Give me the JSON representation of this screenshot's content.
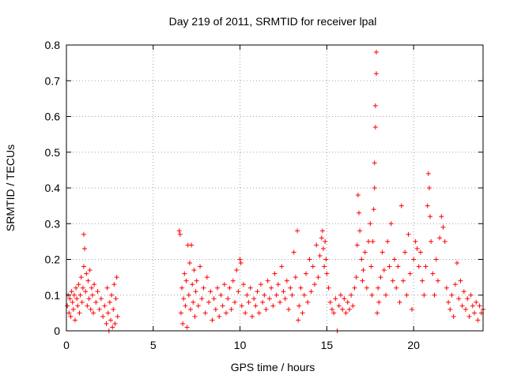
{
  "chart_data": {
    "type": "scatter",
    "title": "Day 219 of 2011, SRMTID for receiver lpal",
    "xlabel": "GPS time / hours",
    "ylabel": "SRMTID / TECUs",
    "xlim": [
      0,
      24
    ],
    "ylim": [
      0,
      0.8
    ],
    "xticks": [
      0,
      5,
      10,
      15,
      20
    ],
    "yticks": [
      0,
      0.1,
      0.2,
      0.3,
      0.4,
      0.5,
      0.6,
      0.7,
      0.8
    ],
    "xtick_labels": [
      "0",
      "5",
      "10",
      "15",
      "20"
    ],
    "ytick_labels": [
      "0",
      "0.1",
      "0.2",
      "0.3",
      "0.4",
      "0.5",
      "0.6",
      "0.7",
      "0.8"
    ],
    "grid": true,
    "marker": "+",
    "marker_color": "#ff0000",
    "series": [
      {
        "name": "SRMTID",
        "points": [
          [
            0.05,
            0.07
          ],
          [
            0.1,
            0.1
          ],
          [
            0.15,
            0.05
          ],
          [
            0.2,
            0.09
          ],
          [
            0.25,
            0.04
          ],
          [
            0.3,
            0.11
          ],
          [
            0.35,
            0.08
          ],
          [
            0.4,
            0.06
          ],
          [
            0.45,
            0.1
          ],
          [
            0.5,
            0.03
          ],
          [
            0.55,
            0.12
          ],
          [
            0.6,
            0.09
          ],
          [
            0.65,
            0.07
          ],
          [
            0.7,
            0.13
          ],
          [
            0.75,
            0.05
          ],
          [
            0.8,
            0.1
          ],
          [
            0.85,
            0.15
          ],
          [
            0.9,
            0.08
          ],
          [
            0.95,
            0.12
          ],
          [
            1.0,
            0.18
          ],
          [
            1.0,
            0.27
          ],
          [
            1.05,
            0.23
          ],
          [
            1.1,
            0.11
          ],
          [
            1.15,
            0.16
          ],
          [
            1.2,
            0.07
          ],
          [
            1.25,
            0.14
          ],
          [
            1.3,
            0.09
          ],
          [
            1.35,
            0.17
          ],
          [
            1.4,
            0.06
          ],
          [
            1.45,
            0.12
          ],
          [
            1.5,
            0.1
          ],
          [
            1.55,
            0.05
          ],
          [
            1.6,
            0.13
          ],
          [
            1.7,
            0.08
          ],
          [
            1.8,
            0.11
          ],
          [
            1.9,
            0.06
          ],
          [
            2.0,
            0.09
          ],
          [
            2.1,
            0.04
          ],
          [
            2.2,
            0.07
          ],
          [
            2.3,
            0.02
          ],
          [
            2.35,
            0.12
          ],
          [
            2.4,
            0.05
          ],
          [
            2.45,
            0.0
          ],
          [
            2.5,
            0.08
          ],
          [
            2.55,
            0.03
          ],
          [
            2.6,
            0.1
          ],
          [
            2.65,
            0.01
          ],
          [
            2.7,
            0.06
          ],
          [
            2.75,
            0.13
          ],
          [
            2.8,
            0.02
          ],
          [
            2.85,
            0.09
          ],
          [
            2.9,
            0.15
          ],
          [
            2.95,
            0.04
          ],
          [
            6.5,
            0.28
          ],
          [
            6.55,
            0.27
          ],
          [
            6.6,
            0.05
          ],
          [
            6.65,
            0.12
          ],
          [
            6.7,
            0.02
          ],
          [
            6.75,
            0.09
          ],
          [
            6.8,
            0.16
          ],
          [
            6.85,
            0.07
          ],
          [
            6.9,
            0.14
          ],
          [
            6.95,
            0.01
          ],
          [
            7.0,
            0.24
          ],
          [
            7.05,
            0.1
          ],
          [
            7.1,
            0.19
          ],
          [
            7.15,
            0.06
          ],
          [
            7.2,
            0.24
          ],
          [
            7.25,
            0.13
          ],
          [
            7.3,
            0.08
          ],
          [
            7.35,
            0.17
          ],
          [
            7.4,
            0.04
          ],
          [
            7.45,
            0.11
          ],
          [
            7.5,
            0.14
          ],
          [
            7.6,
            0.07
          ],
          [
            7.7,
            0.18
          ],
          [
            7.8,
            0.09
          ],
          [
            7.9,
            0.12
          ],
          [
            8.0,
            0.05
          ],
          [
            8.1,
            0.15
          ],
          [
            8.2,
            0.08
          ],
          [
            8.3,
            0.11
          ],
          [
            8.4,
            0.03
          ],
          [
            8.5,
            0.09
          ],
          [
            8.6,
            0.06
          ],
          [
            8.7,
            0.12
          ],
          [
            8.8,
            0.04
          ],
          [
            8.9,
            0.1
          ],
          [
            9.0,
            0.07
          ],
          [
            9.1,
            0.13
          ],
          [
            9.2,
            0.05
          ],
          [
            9.3,
            0.09
          ],
          [
            9.4,
            0.12
          ],
          [
            9.5,
            0.06
          ],
          [
            9.6,
            0.14
          ],
          [
            9.7,
            0.08
          ],
          [
            9.8,
            0.17
          ],
          [
            9.9,
            0.11
          ],
          [
            10.0,
            0.2
          ],
          [
            10.05,
            0.19
          ],
          [
            10.1,
            0.07
          ],
          [
            10.2,
            0.13
          ],
          [
            10.3,
            0.05
          ],
          [
            10.4,
            0.1
          ],
          [
            10.5,
            0.08
          ],
          [
            10.6,
            0.12
          ],
          [
            10.7,
            0.04
          ],
          [
            10.8,
            0.09
          ],
          [
            10.9,
            0.07
          ],
          [
            11.0,
            0.11
          ],
          [
            11.1,
            0.05
          ],
          [
            11.2,
            0.13
          ],
          [
            11.3,
            0.08
          ],
          [
            11.4,
            0.1
          ],
          [
            11.5,
            0.06
          ],
          [
            11.6,
            0.14
          ],
          [
            11.7,
            0.09
          ],
          [
            11.8,
            0.12
          ],
          [
            11.9,
            0.07
          ],
          [
            12.0,
            0.16
          ],
          [
            12.1,
            0.1
          ],
          [
            12.2,
            0.13
          ],
          [
            12.3,
            0.08
          ],
          [
            12.4,
            0.18
          ],
          [
            12.5,
            0.11
          ],
          [
            12.6,
            0.09
          ],
          [
            12.7,
            0.14
          ],
          [
            12.8,
            0.06
          ],
          [
            12.9,
            0.12
          ],
          [
            13.0,
            0.1
          ],
          [
            13.1,
            0.22
          ],
          [
            13.2,
            0.15
          ],
          [
            13.3,
            0.28
          ],
          [
            13.35,
            0.03
          ],
          [
            13.4,
            0.07
          ],
          [
            13.5,
            0.12
          ],
          [
            13.6,
            0.05
          ],
          [
            13.7,
            0.1
          ],
          [
            13.8,
            0.16
          ],
          [
            13.9,
            0.08
          ],
          [
            14.0,
            0.2
          ],
          [
            14.1,
            0.11
          ],
          [
            14.2,
            0.18
          ],
          [
            14.3,
            0.13
          ],
          [
            14.4,
            0.24
          ],
          [
            14.5,
            0.15
          ],
          [
            14.6,
            0.21
          ],
          [
            14.7,
            0.26
          ],
          [
            14.75,
            0.28
          ],
          [
            14.8,
            0.23
          ],
          [
            14.85,
            0.18
          ],
          [
            14.9,
            0.25
          ],
          [
            14.95,
            0.2
          ],
          [
            15.0,
            0.16
          ],
          [
            15.1,
            0.12
          ],
          [
            15.2,
            0.08
          ],
          [
            15.3,
            0.06
          ],
          [
            15.4,
            0.05
          ],
          [
            15.5,
            0.09
          ],
          [
            15.6,
            0.0
          ],
          [
            15.7,
            0.07
          ],
          [
            15.8,
            0.1
          ],
          [
            15.9,
            0.06
          ],
          [
            16.0,
            0.09
          ],
          [
            16.1,
            0.05
          ],
          [
            16.2,
            0.08
          ],
          [
            16.3,
            0.06
          ],
          [
            16.4,
            0.1
          ],
          [
            16.5,
            0.07
          ],
          [
            16.6,
            0.12
          ],
          [
            16.7,
            0.15
          ],
          [
            16.75,
            0.24
          ],
          [
            16.8,
            0.38
          ],
          [
            16.85,
            0.33
          ],
          [
            16.9,
            0.28
          ],
          [
            17.0,
            0.2
          ],
          [
            17.05,
            0.14
          ],
          [
            17.1,
            0.17
          ],
          [
            17.2,
            0.22
          ],
          [
            17.3,
            0.12
          ],
          [
            17.4,
            0.25
          ],
          [
            17.5,
            0.3
          ],
          [
            17.55,
            0.18
          ],
          [
            17.6,
            0.1
          ],
          [
            17.65,
            0.25
          ],
          [
            17.7,
            0.34
          ],
          [
            17.75,
            0.4
          ],
          [
            17.75,
            0.47
          ],
          [
            17.8,
            0.57
          ],
          [
            17.8,
            0.63
          ],
          [
            17.85,
            0.72
          ],
          [
            17.85,
            0.78
          ],
          [
            17.9,
            0.05
          ],
          [
            17.95,
            0.12
          ],
          [
            18.0,
            0.08
          ],
          [
            18.1,
            0.15
          ],
          [
            18.2,
            0.22
          ],
          [
            18.3,
            0.17
          ],
          [
            18.4,
            0.1
          ],
          [
            18.5,
            0.25
          ],
          [
            18.6,
            0.18
          ],
          [
            18.7,
            0.3
          ],
          [
            18.8,
            0.14
          ],
          [
            18.9,
            0.2
          ],
          [
            19.0,
            0.12
          ],
          [
            19.1,
            0.18
          ],
          [
            19.2,
            0.08
          ],
          [
            19.3,
            0.35
          ],
          [
            19.4,
            0.14
          ],
          [
            19.5,
            0.22
          ],
          [
            19.6,
            0.1
          ],
          [
            19.7,
            0.27
          ],
          [
            19.8,
            0.16
          ],
          [
            19.9,
            0.06
          ],
          [
            20.0,
            0.2
          ],
          [
            20.1,
            0.25
          ],
          [
            20.2,
            0.23
          ],
          [
            20.3,
            0.18
          ],
          [
            20.4,
            0.22
          ],
          [
            20.5,
            0.14
          ],
          [
            20.6,
            0.1
          ],
          [
            20.7,
            0.18
          ],
          [
            20.8,
            0.35
          ],
          [
            20.85,
            0.44
          ],
          [
            20.9,
            0.4
          ],
          [
            20.95,
            0.32
          ],
          [
            21.0,
            0.25
          ],
          [
            21.1,
            0.16
          ],
          [
            21.2,
            0.1
          ],
          [
            21.3,
            0.2
          ],
          [
            21.4,
            0.14
          ],
          [
            21.5,
            0.26
          ],
          [
            21.6,
            0.32
          ],
          [
            21.7,
            0.29
          ],
          [
            21.8,
            0.25
          ],
          [
            21.9,
            0.12
          ],
          [
            22.0,
            0.08
          ],
          [
            22.1,
            0.06
          ],
          [
            22.2,
            0.1
          ],
          [
            22.3,
            0.04
          ],
          [
            22.4,
            0.13
          ],
          [
            22.5,
            0.19
          ],
          [
            22.6,
            0.09
          ],
          [
            22.7,
            0.14
          ],
          [
            22.8,
            0.07
          ],
          [
            22.9,
            0.11
          ],
          [
            23.0,
            0.06
          ],
          [
            23.1,
            0.09
          ],
          [
            23.2,
            0.04
          ],
          [
            23.3,
            0.1
          ],
          [
            23.4,
            0.07
          ],
          [
            23.5,
            0.05
          ],
          [
            23.6,
            0.08
          ],
          [
            23.7,
            0.03
          ],
          [
            23.8,
            0.07
          ],
          [
            23.9,
            0.05
          ],
          [
            24.0,
            0.06
          ]
        ]
      }
    ]
  }
}
